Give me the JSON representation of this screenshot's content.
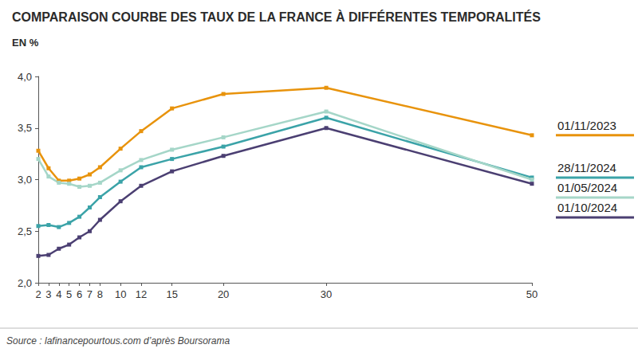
{
  "chart_data": {
    "type": "line",
    "title": "COMPARAISON COURBE DES TAUX DE LA FRANCE À DIFFÉRENTES TEMPORALITÉS",
    "subtitle": "EN %",
    "source": "Source : lafinancepourtous.com d’après Boursorama",
    "x": [
      2,
      3,
      4,
      5,
      6,
      7,
      8,
      10,
      12,
      15,
      20,
      30,
      50
    ],
    "xlim": [
      2,
      50
    ],
    "xticks": [
      2,
      3,
      4,
      5,
      6,
      7,
      8,
      10,
      12,
      15,
      20,
      30,
      50
    ],
    "ylim": [
      2,
      4
    ],
    "yticks": [
      {
        "value": 2,
        "label": "2,0"
      },
      {
        "value": 2.5,
        "label": "2,5"
      },
      {
        "value": 3,
        "label": "3,0"
      },
      {
        "value": 3.5,
        "label": "3,5"
      },
      {
        "value": 4,
        "label": "4,0"
      }
    ],
    "grid": false,
    "legend": "right",
    "marker": "square",
    "series": [
      {
        "name": "01/11/2023",
        "color": "#e8930c",
        "values": [
          3.28,
          3.11,
          2.99,
          2.99,
          3.01,
          3.05,
          3.12,
          3.3,
          3.47,
          3.69,
          3.83,
          3.89,
          3.43
        ]
      },
      {
        "name": "28/11/2024",
        "color": "#3ba3a8",
        "values": [
          2.55,
          2.56,
          2.54,
          2.58,
          2.64,
          2.73,
          2.83,
          2.98,
          3.12,
          3.2,
          3.32,
          3.6,
          3.02
        ]
      },
      {
        "name": "01/05/2024",
        "color": "#a5d6c8",
        "values": [
          3.2,
          3.03,
          2.97,
          2.96,
          2.93,
          2.94,
          2.97,
          3.09,
          3.19,
          3.29,
          3.41,
          3.66,
          3.0
        ]
      },
      {
        "name": "01/10/2024",
        "color": "#4b3f72",
        "values": [
          2.26,
          2.27,
          2.33,
          2.37,
          2.44,
          2.5,
          2.61,
          2.79,
          2.94,
          3.08,
          3.23,
          3.5,
          2.96
        ]
      }
    ]
  }
}
